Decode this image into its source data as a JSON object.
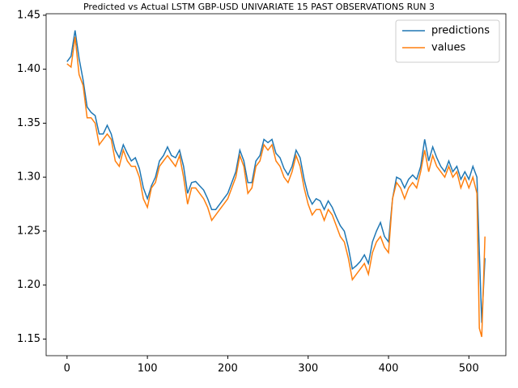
{
  "chart_data": {
    "type": "line",
    "title": "Predicted vs Actual LSTM GBP-USD UNIVARIATE 15 PAST OBSERVATIONS RUN 3",
    "x": [
      0,
      5,
      10,
      15,
      20,
      25,
      30,
      35,
      40,
      45,
      50,
      55,
      60,
      65,
      70,
      75,
      80,
      85,
      90,
      95,
      100,
      105,
      110,
      115,
      120,
      125,
      130,
      135,
      140,
      145,
      150,
      155,
      160,
      165,
      170,
      175,
      180,
      185,
      190,
      195,
      200,
      205,
      210,
      215,
      220,
      225,
      230,
      235,
      240,
      245,
      250,
      255,
      260,
      265,
      270,
      275,
      280,
      285,
      290,
      295,
      300,
      305,
      310,
      315,
      320,
      325,
      330,
      335,
      340,
      345,
      350,
      355,
      360,
      365,
      370,
      375,
      380,
      385,
      390,
      395,
      400,
      405,
      410,
      415,
      420,
      425,
      430,
      435,
      440,
      445,
      450,
      455,
      460,
      465,
      470,
      475,
      480,
      485,
      490,
      495,
      500,
      505,
      510,
      513,
      516,
      520
    ],
    "series": [
      {
        "name": "predictions",
        "color": "#1f77b4",
        "values": [
          1.407,
          1.412,
          1.436,
          1.41,
          1.39,
          1.365,
          1.36,
          1.357,
          1.34,
          1.34,
          1.348,
          1.34,
          1.325,
          1.318,
          1.33,
          1.322,
          1.315,
          1.318,
          1.308,
          1.29,
          1.28,
          1.292,
          1.3,
          1.315,
          1.32,
          1.328,
          1.32,
          1.318,
          1.325,
          1.31,
          1.285,
          1.295,
          1.296,
          1.292,
          1.288,
          1.28,
          1.27,
          1.27,
          1.275,
          1.28,
          1.285,
          1.295,
          1.305,
          1.325,
          1.315,
          1.295,
          1.295,
          1.315,
          1.32,
          1.335,
          1.332,
          1.335,
          1.322,
          1.318,
          1.308,
          1.302,
          1.31,
          1.325,
          1.318,
          1.298,
          1.283,
          1.275,
          1.28,
          1.278,
          1.27,
          1.278,
          1.272,
          1.263,
          1.255,
          1.25,
          1.235,
          1.215,
          1.218,
          1.222,
          1.228,
          1.22,
          1.24,
          1.25,
          1.258,
          1.245,
          1.24,
          1.28,
          1.3,
          1.298,
          1.29,
          1.298,
          1.302,
          1.298,
          1.31,
          1.335,
          1.315,
          1.328,
          1.318,
          1.31,
          1.305,
          1.315,
          1.305,
          1.31,
          1.298,
          1.305,
          1.298,
          1.31,
          1.3,
          1.23,
          1.165,
          1.225
        ]
      },
      {
        "name": "values",
        "color": "#ff7f0e",
        "values": [
          1.405,
          1.402,
          1.43,
          1.395,
          1.385,
          1.355,
          1.355,
          1.35,
          1.33,
          1.335,
          1.34,
          1.335,
          1.315,
          1.31,
          1.325,
          1.315,
          1.31,
          1.31,
          1.3,
          1.28,
          1.272,
          1.29,
          1.295,
          1.31,
          1.315,
          1.32,
          1.315,
          1.31,
          1.32,
          1.3,
          1.275,
          1.29,
          1.29,
          1.285,
          1.28,
          1.272,
          1.26,
          1.265,
          1.27,
          1.275,
          1.28,
          1.29,
          1.3,
          1.32,
          1.31,
          1.285,
          1.29,
          1.31,
          1.315,
          1.33,
          1.325,
          1.33,
          1.315,
          1.31,
          1.3,
          1.295,
          1.305,
          1.32,
          1.31,
          1.29,
          1.275,
          1.265,
          1.27,
          1.27,
          1.26,
          1.27,
          1.265,
          1.255,
          1.245,
          1.24,
          1.225,
          1.205,
          1.21,
          1.215,
          1.22,
          1.21,
          1.23,
          1.24,
          1.245,
          1.235,
          1.23,
          1.28,
          1.295,
          1.29,
          1.28,
          1.29,
          1.295,
          1.29,
          1.305,
          1.325,
          1.305,
          1.32,
          1.31,
          1.305,
          1.3,
          1.31,
          1.3,
          1.305,
          1.29,
          1.3,
          1.29,
          1.3,
          1.285,
          1.16,
          1.152,
          1.245
        ]
      }
    ],
    "xlim": [
      -26,
      546
    ],
    "xticks": [
      0,
      100,
      200,
      300,
      400,
      500
    ],
    "ylim": [
      1.1346,
      1.4514
    ],
    "yticks": [
      1.15,
      {
        "value": 1.2,
        "label": "1.20"
      },
      1.25,
      {
        "value": 1.3,
        "label": "1.30"
      },
      1.35,
      {
        "value": 1.4,
        "label": "1.40"
      },
      1.45
    ],
    "legend": "upper right"
  }
}
